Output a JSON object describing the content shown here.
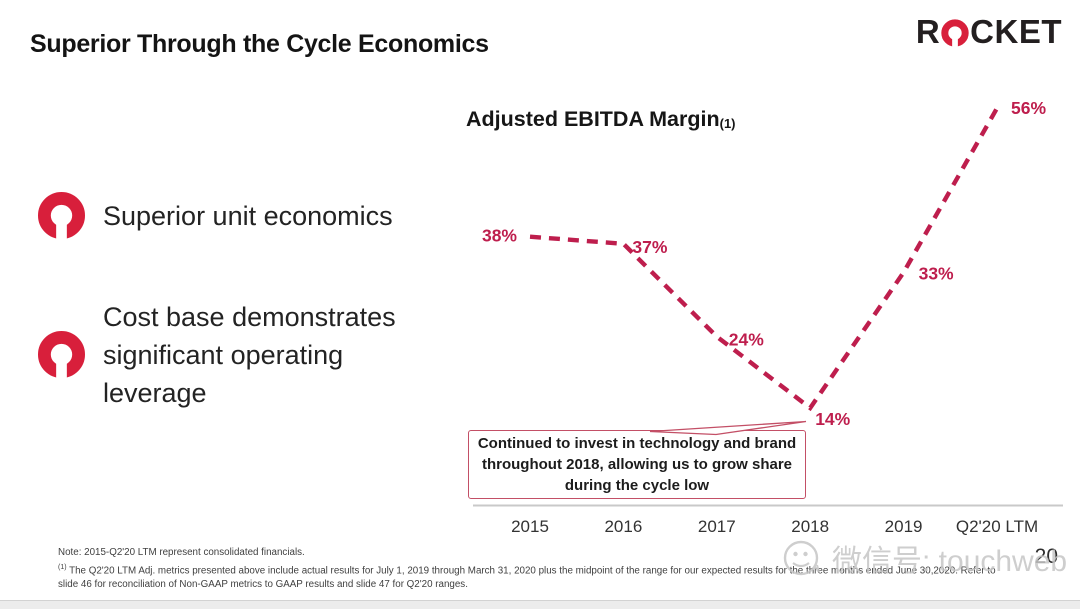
{
  "slide": {
    "title": "Superior Through the Cycle Economics",
    "page_number": "20"
  },
  "logo": {
    "name": "ROCKET",
    "prefix": "R",
    "suffix": "CKET"
  },
  "bullets": [
    {
      "text": "Superior unit economics"
    },
    {
      "text": "Cost base demonstrates significant operating leverage"
    }
  ],
  "chart_data": {
    "type": "line",
    "title": "Adjusted EBITDA Margin",
    "title_footnote_ref": "(1)",
    "categories": [
      "2015",
      "2016",
      "2017",
      "2018",
      "2019",
      "Q2'20 LTM"
    ],
    "values": [
      38,
      37,
      24,
      14,
      33,
      56
    ],
    "labels": [
      "38%",
      "37%",
      "24%",
      "14%",
      "33%",
      "56%"
    ],
    "unit": "%",
    "ylim": [
      0,
      60
    ],
    "grid": false,
    "line_style": "dashed",
    "line_color": "#be1e4d",
    "annotation": "Continued to invest in technology and brand throughout 2018, allowing us to grow share during the cycle low",
    "annotation_points_to": "2018"
  },
  "callout": {
    "lines": [
      "Continued to invest in technology and brand",
      "throughout 2018, allowing us to grow share",
      "during the cycle low"
    ]
  },
  "footnotes": {
    "note": "Note:  2015-Q2'20 LTM  represent consolidated financials.",
    "fn1_marker": "(1)",
    "fn1": "The Q2'20 LTM  Adj. metrics presented above include actual results for July 1, 2019 through  March 31, 2020 plus the midpoint of the range for our expected results for the three months ended June 30,2020.  Refer  to slide 46 for reconciliation of Non-GAAP  metrics to  GAAP  results and slide 47 for Q2'20 ranges."
  },
  "watermark": {
    "text": "微信号: touchweb",
    "icon": "wechat-icon"
  },
  "colors": {
    "accent_red": "#d81f3b",
    "line_crimson": "#be1e4d",
    "callout_border": "#c34f66"
  }
}
